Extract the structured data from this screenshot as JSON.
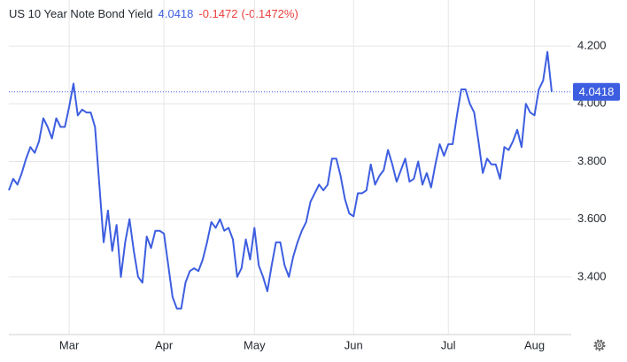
{
  "chart_data": {
    "type": "line",
    "title": "US 10 Year Note Bond Yield",
    "last_price": 4.0418,
    "change": -0.1472,
    "change_percent_label": "(-0.1472%)",
    "categories": [
      null,
      null,
      null,
      null,
      null,
      null,
      null,
      null,
      null,
      null,
      null,
      null,
      null,
      null,
      "Mar",
      null,
      null,
      null,
      null,
      null,
      null,
      null,
      null,
      null,
      null,
      null,
      null,
      null,
      null,
      null,
      null,
      null,
      null,
      null,
      null,
      null,
      "Apr",
      null,
      null,
      null,
      null,
      null,
      null,
      null,
      null,
      null,
      null,
      null,
      null,
      null,
      null,
      null,
      null,
      null,
      null,
      null,
      null,
      "May",
      null,
      null,
      null,
      null,
      null,
      null,
      null,
      null,
      null,
      null,
      null,
      null,
      null,
      null,
      null,
      null,
      null,
      null,
      null,
      null,
      null,
      null,
      "Jun",
      null,
      null,
      null,
      null,
      null,
      null,
      null,
      null,
      null,
      null,
      null,
      null,
      null,
      null,
      null,
      null,
      null,
      null,
      null,
      null,
      null,
      "Jul",
      null,
      null,
      null,
      null,
      null,
      null,
      null,
      null,
      null,
      null,
      null,
      null,
      null,
      null,
      null,
      null,
      null,
      null,
      null,
      "Aug",
      null,
      null,
      null,
      null
    ],
    "series": [
      {
        "name": "US 10 Year Note Bond Yield",
        "color": "#3d5ee0",
        "values": [
          3.7,
          3.74,
          3.72,
          3.76,
          3.81,
          3.85,
          3.83,
          3.87,
          3.95,
          3.92,
          3.88,
          3.95,
          3.92,
          3.92,
          3.99,
          4.07,
          3.96,
          3.98,
          3.97,
          3.97,
          3.92,
          3.72,
          3.52,
          3.63,
          3.49,
          3.58,
          3.4,
          3.52,
          3.6,
          3.49,
          3.4,
          3.38,
          3.54,
          3.5,
          3.56,
          3.56,
          3.55,
          3.44,
          3.33,
          3.29,
          3.29,
          3.38,
          3.42,
          3.43,
          3.42,
          3.46,
          3.52,
          3.59,
          3.57,
          3.6,
          3.56,
          3.57,
          3.53,
          3.4,
          3.43,
          3.53,
          3.46,
          3.57,
          3.44,
          3.4,
          3.35,
          3.44,
          3.52,
          3.52,
          3.44,
          3.4,
          3.47,
          3.52,
          3.56,
          3.59,
          3.66,
          3.69,
          3.72,
          3.7,
          3.72,
          3.81,
          3.81,
          3.75,
          3.67,
          3.62,
          3.61,
          3.69,
          3.69,
          3.7,
          3.79,
          3.72,
          3.75,
          3.77,
          3.84,
          3.79,
          3.73,
          3.77,
          3.81,
          3.73,
          3.74,
          3.8,
          3.72,
          3.76,
          3.71,
          3.79,
          3.86,
          3.82,
          3.86,
          3.86,
          3.96,
          4.05,
          4.05,
          4.0,
          3.97,
          3.87,
          3.76,
          3.81,
          3.79,
          3.79,
          3.74,
          3.85,
          3.84,
          3.87,
          3.91,
          3.85,
          4.0,
          3.97,
          3.96,
          4.05,
          4.08,
          4.18,
          4.0418
        ]
      }
    ],
    "ylim": [
      3.2,
      4.36
    ],
    "yticks": [
      {
        "value": 3.4,
        "label": "3.400"
      },
      {
        "value": 3.6,
        "label": "3.600"
      },
      {
        "value": 3.8,
        "label": "3.800"
      },
      {
        "value": 4.0,
        "label": "4.000"
      },
      {
        "value": 4.2,
        "label": "4.200"
      }
    ],
    "grid": true
  }
}
